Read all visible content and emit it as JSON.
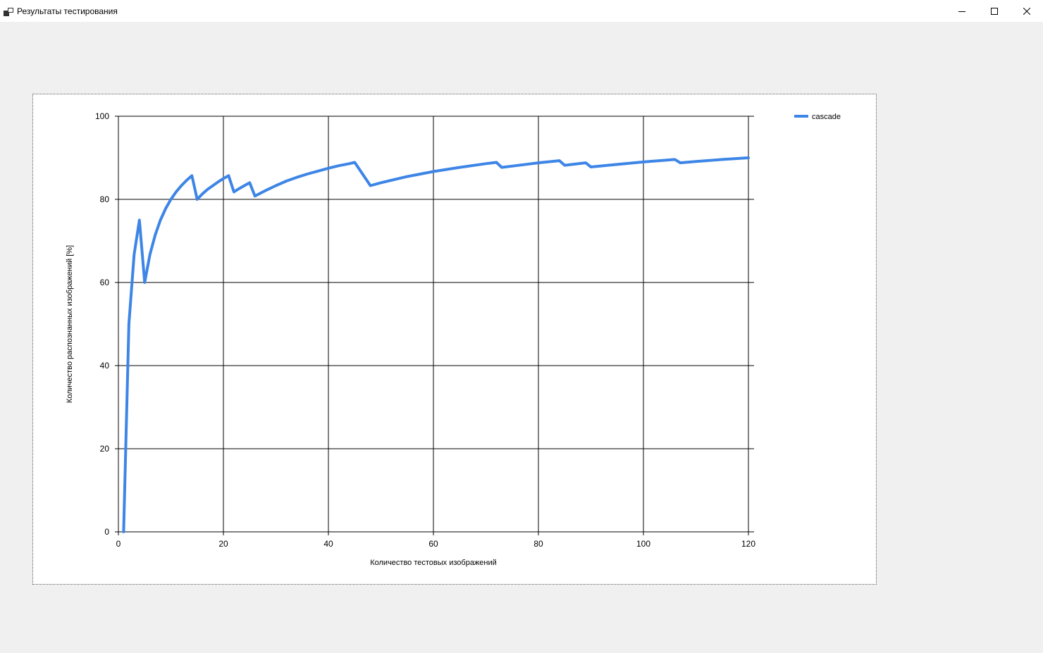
{
  "window": {
    "title": "Результаты тестирования",
    "icon": "app-window-icon",
    "controls": [
      "minimize-icon",
      "maximize-icon",
      "close-icon"
    ]
  },
  "chart_data": {
    "type": "line",
    "xlabel": "Количество тестовых изображений",
    "ylabel": "Количество распознанных изображений [%]",
    "xlim": [
      0,
      120
    ],
    "ylim": [
      0,
      100
    ],
    "x_ticks": [
      0,
      20,
      40,
      60,
      80,
      100,
      120
    ],
    "y_ticks": [
      0,
      20,
      40,
      60,
      80,
      100
    ],
    "grid": true,
    "legend_position": "top-right",
    "series": [
      {
        "name": "cascade",
        "color": "#3d85e6",
        "x": [
          1,
          2,
          3,
          4,
          5,
          6,
          7,
          8,
          9,
          10,
          11,
          12,
          13,
          14,
          15,
          16,
          17,
          18,
          19,
          20,
          21,
          22,
          23,
          24,
          25,
          26,
          28,
          30,
          32,
          34,
          36,
          38,
          40,
          42,
          44,
          45,
          48,
          50,
          55,
          60,
          65,
          70,
          72,
          73,
          75,
          80,
          84,
          85,
          89,
          90,
          95,
          100,
          106,
          107,
          110,
          115,
          120
        ],
        "y": [
          0,
          50,
          66.7,
          75,
          60,
          66.7,
          71.4,
          75,
          77.8,
          80,
          81.8,
          83.3,
          84.6,
          85.7,
          80,
          81.3,
          82.4,
          83.3,
          84.2,
          85,
          85.7,
          81.8,
          82.6,
          83.3,
          84,
          80.8,
          82.1,
          83.3,
          84.4,
          85.3,
          86.1,
          86.8,
          87.5,
          88.1,
          88.6,
          88.9,
          83.3,
          84,
          85.5,
          86.7,
          87.7,
          88.6,
          88.9,
          87.7,
          88,
          88.8,
          89.3,
          88.2,
          88.8,
          87.8,
          88.4,
          89,
          89.6,
          88.8,
          89.1,
          89.6,
          90
        ]
      }
    ]
  }
}
